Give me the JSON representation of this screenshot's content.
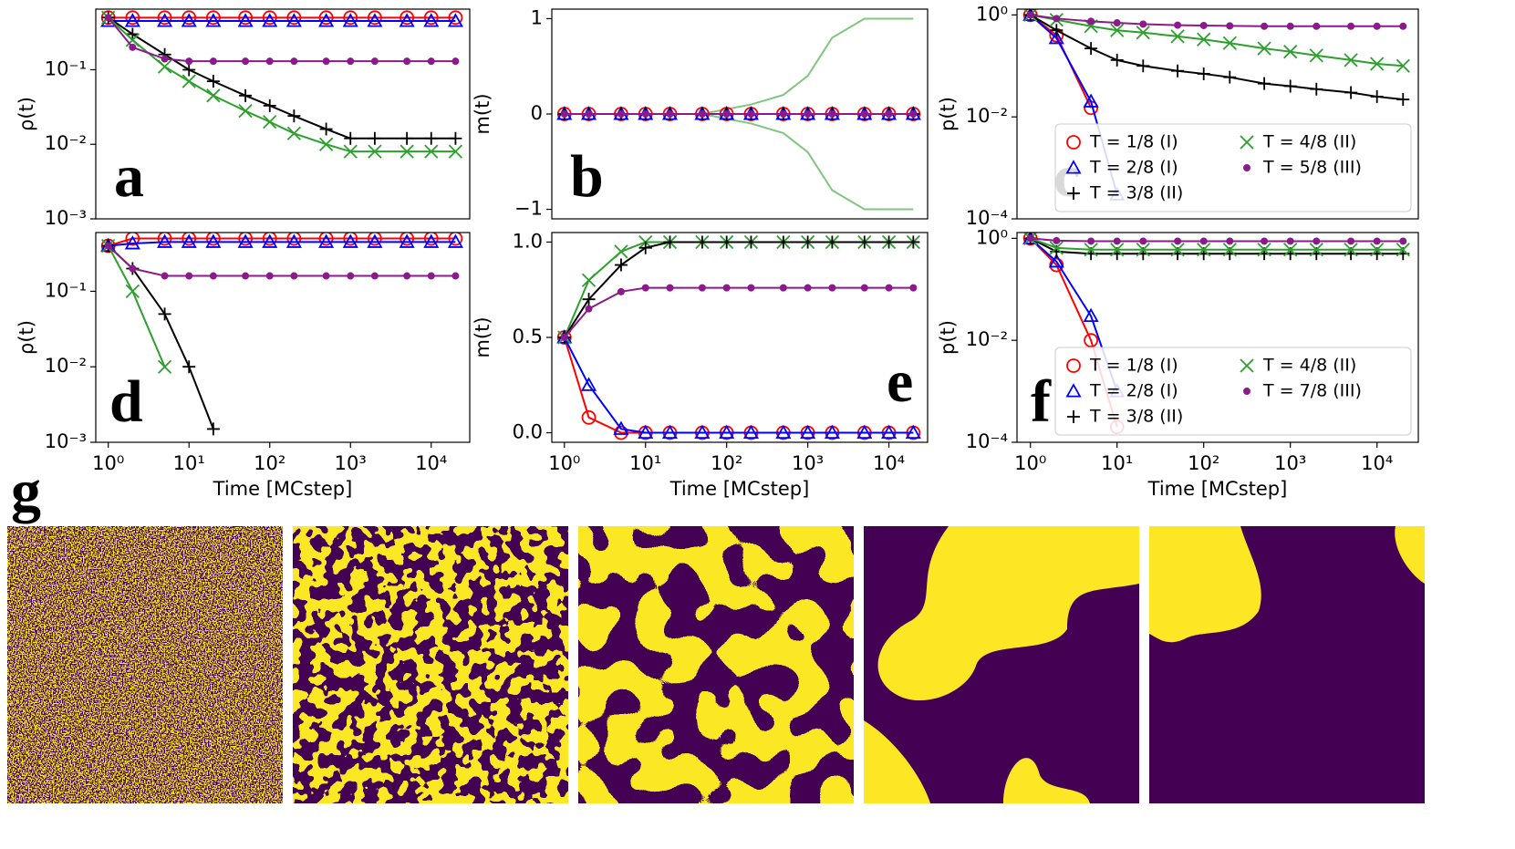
{
  "chart_data": [
    {
      "type": "line",
      "panel_label": "a",
      "ylabel": "ρ(t)",
      "xscale": "log",
      "yscale": "log",
      "xlim": [
        0.7,
        30000
      ],
      "ylim": [
        0.001,
        0.65
      ],
      "yticks": [
        {
          "value": 0.001,
          "label": "10⁻³"
        },
        {
          "value": 0.01,
          "label": "10⁻²"
        },
        {
          "value": 0.1,
          "label": "10⁻¹"
        }
      ],
      "x": [
        1,
        2,
        5,
        10,
        20,
        50,
        100,
        200,
        500,
        1000,
        2000,
        5000,
        10000,
        20000
      ],
      "series": [
        {
          "color": "#ff0000",
          "marker": "o",
          "values": [
            0.5,
            0.5,
            0.5,
            0.5,
            0.5,
            0.5,
            0.5,
            0.5,
            0.5,
            0.5,
            0.5,
            0.5,
            0.5,
            0.5
          ]
        },
        {
          "color": "#0000ff",
          "marker": "^",
          "values": [
            0.45,
            0.45,
            0.45,
            0.45,
            0.45,
            0.45,
            0.45,
            0.45,
            0.45,
            0.45,
            0.45,
            0.45,
            0.45,
            0.45
          ]
        },
        {
          "color": "#000000",
          "marker": "+",
          "values": [
            0.5,
            0.3,
            0.16,
            0.1,
            0.07,
            0.045,
            0.033,
            0.024,
            0.016,
            0.012,
            0.012,
            0.012,
            0.012,
            0.012
          ]
        },
        {
          "color": "#2ca02c",
          "marker": "x",
          "values": [
            0.5,
            0.25,
            0.11,
            0.07,
            0.045,
            0.028,
            0.02,
            0.014,
            0.01,
            0.008,
            0.008,
            0.008,
            0.008,
            0.008
          ]
        },
        {
          "color": "#8b1a8b",
          "marker": ".",
          "values": [
            0.5,
            0.2,
            0.14,
            0.13,
            0.13,
            0.13,
            0.13,
            0.13,
            0.13,
            0.13,
            0.13,
            0.13,
            0.13,
            0.13
          ]
        }
      ]
    },
    {
      "type": "line",
      "panel_label": "b",
      "ylabel": "m(t)",
      "xscale": "log",
      "yscale": "linear",
      "xlim": [
        0.7,
        30000
      ],
      "ylim": [
        -1.1,
        1.1
      ],
      "yticks": [
        {
          "value": -1,
          "label": "−1"
        },
        0,
        1
      ],
      "x": [
        1,
        2,
        5,
        10,
        20,
        50,
        100,
        200,
        500,
        1000,
        2000,
        5000,
        10000,
        20000
      ],
      "series": [
        {
          "color": "#2ca02c",
          "marker": "none",
          "values": [
            0,
            0,
            0,
            0,
            0,
            0,
            0.05,
            0.1,
            0.2,
            0.4,
            0.8,
            1,
            1,
            1
          ]
        },
        {
          "color": "#2ca02c",
          "marker": "none",
          "values": [
            0,
            0,
            0,
            0,
            0,
            0,
            -0.05,
            -0.1,
            -0.2,
            -0.4,
            -0.8,
            -1,
            -1,
            -1
          ]
        },
        {
          "color": "#ff0000",
          "marker": "o",
          "values": [
            0,
            0,
            0,
            0,
            0,
            0,
            0,
            0,
            0,
            0,
            0,
            0,
            0,
            0
          ]
        },
        {
          "color": "#0000ff",
          "marker": "^",
          "values": [
            0,
            0,
            0,
            0,
            0,
            0,
            0,
            0,
            0,
            0,
            0,
            0,
            0,
            0
          ]
        },
        {
          "color": "#000000",
          "marker": "+",
          "values": [
            0,
            0,
            0,
            0,
            0,
            0,
            0,
            0,
            0,
            0,
            0,
            0,
            0,
            0
          ]
        },
        {
          "color": "#8b1a8b",
          "marker": ".",
          "values": [
            0,
            0,
            0,
            0,
            0,
            0,
            0,
            0,
            0,
            0,
            0,
            0,
            0,
            0
          ]
        }
      ]
    },
    {
      "type": "line",
      "panel_label": "c",
      "ylabel": "p(t)",
      "xscale": "log",
      "yscale": "log",
      "xlim": [
        0.7,
        30000
      ],
      "ylim": [
        0.0001,
        1.3
      ],
      "legend": "lower right",
      "yticks": [
        {
          "value": 0.0001,
          "label": "10⁻⁴"
        },
        {
          "value": 0.01,
          "label": "10⁻²"
        },
        {
          "value": 1,
          "label": "10⁰"
        }
      ],
      "x": [
        1,
        2,
        5,
        10,
        20,
        50,
        100,
        200,
        500,
        1000,
        2000,
        5000,
        10000,
        20000
      ],
      "series": [
        {
          "name": "T = 1/8 (I)",
          "color": "#ff0000",
          "marker": "o",
          "values": [
            1,
            0.4,
            0.015,
            null,
            null,
            null,
            null,
            null,
            null,
            null,
            null,
            null,
            null,
            null
          ]
        },
        {
          "name": "T = 2/8 (I)",
          "color": "#0000ff",
          "marker": "^",
          "values": [
            1,
            0.35,
            0.02,
            0.0003,
            null,
            null,
            null,
            null,
            null,
            null,
            null,
            null,
            null,
            null
          ]
        },
        {
          "name": "T = 3/8 (II)",
          "color": "#000000",
          "marker": "+",
          "values": [
            1,
            0.5,
            0.22,
            0.13,
            0.1,
            0.08,
            0.07,
            0.06,
            0.045,
            0.04,
            0.035,
            0.03,
            0.025,
            0.022
          ]
        },
        {
          "name": "T = 4/8 (II)",
          "color": "#2ca02c",
          "marker": "x",
          "values": [
            1,
            0.8,
            0.6,
            0.5,
            0.45,
            0.38,
            0.33,
            0.28,
            0.22,
            0.19,
            0.16,
            0.13,
            0.11,
            0.1
          ]
        },
        {
          "name": "T = 5/8 (III)",
          "color": "#8b1a8b",
          "marker": ".",
          "values": [
            1,
            0.85,
            0.75,
            0.7,
            0.66,
            0.63,
            0.62,
            0.61,
            0.6,
            0.6,
            0.6,
            0.6,
            0.6,
            0.6
          ]
        }
      ]
    },
    {
      "type": "line",
      "panel_label": "d",
      "ylabel": "ρ(t)",
      "xlabel": "Time [MCstep]",
      "xscale": "log",
      "yscale": "log",
      "xlim": [
        0.7,
        30000
      ],
      "ylim": [
        0.001,
        0.6
      ],
      "xticks": [
        {
          "value": 1,
          "label": "10⁰"
        },
        {
          "value": 10,
          "label": "10¹"
        },
        {
          "value": 100,
          "label": "10²"
        },
        {
          "value": 1000,
          "label": "10³"
        },
        {
          "value": 10000,
          "label": "10⁴"
        }
      ],
      "yticks": [
        {
          "value": 0.001,
          "label": "10⁻³"
        },
        {
          "value": 0.01,
          "label": "10⁻²"
        },
        {
          "value": 0.1,
          "label": "10⁻¹"
        }
      ],
      "x": [
        1,
        2,
        5,
        10,
        20,
        50,
        100,
        200,
        500,
        1000,
        2000,
        5000,
        10000,
        20000
      ],
      "series": [
        {
          "color": "#ff0000",
          "marker": "o",
          "values": [
            0.4,
            0.5,
            0.5,
            0.5,
            0.5,
            0.5,
            0.5,
            0.5,
            0.5,
            0.5,
            0.5,
            0.5,
            0.5,
            0.5
          ]
        },
        {
          "color": "#0000ff",
          "marker": "^",
          "values": [
            0.4,
            0.43,
            0.45,
            0.45,
            0.45,
            0.45,
            0.45,
            0.45,
            0.45,
            0.45,
            0.45,
            0.45,
            0.45,
            0.45
          ]
        },
        {
          "color": "#000000",
          "marker": "+",
          "values": [
            0.4,
            0.2,
            0.05,
            0.01,
            0.0015,
            null,
            null,
            null,
            null,
            null,
            null,
            null,
            null,
            null
          ]
        },
        {
          "color": "#2ca02c",
          "marker": "x",
          "values": [
            0.4,
            0.1,
            0.01,
            null,
            null,
            null,
            null,
            null,
            null,
            null,
            null,
            null,
            null,
            null
          ]
        },
        {
          "color": "#8b1a8b",
          "marker": ".",
          "values": [
            0.4,
            0.2,
            0.16,
            0.16,
            0.16,
            0.16,
            0.16,
            0.16,
            0.16,
            0.16,
            0.16,
            0.16,
            0.16,
            0.16
          ]
        }
      ]
    },
    {
      "type": "line",
      "panel_label": "e",
      "ylabel": "m(t)",
      "xlabel": "Time [MCstep]",
      "xscale": "log",
      "yscale": "linear",
      "xlim": [
        0.7,
        30000
      ],
      "ylim": [
        -0.05,
        1.05
      ],
      "xticks": [
        {
          "value": 1,
          "label": "10⁰"
        },
        {
          "value": 10,
          "label": "10¹"
        },
        {
          "value": 100,
          "label": "10²"
        },
        {
          "value": 1000,
          "label": "10³"
        },
        {
          "value": 10000,
          "label": "10⁴"
        }
      ],
      "yticks": [
        {
          "value": 0,
          "label": "0.0"
        },
        {
          "value": 0.5,
          "label": "0.5"
        },
        {
          "value": 1,
          "label": "1.0"
        }
      ],
      "x": [
        1,
        2,
        5,
        10,
        20,
        50,
        100,
        200,
        500,
        1000,
        2000,
        5000,
        10000,
        20000
      ],
      "series": [
        {
          "color": "#ff0000",
          "marker": "o",
          "values": [
            0.5,
            0.08,
            0,
            0,
            0,
            0,
            0,
            0,
            0,
            0,
            0,
            0,
            0,
            0
          ]
        },
        {
          "color": "#0000ff",
          "marker": "^",
          "values": [
            0.5,
            0.25,
            0.02,
            0,
            0,
            0,
            0,
            0,
            0,
            0,
            0,
            0,
            0,
            0
          ]
        },
        {
          "color": "#2ca02c",
          "marker": "x",
          "values": [
            0.5,
            0.8,
            0.95,
            1,
            1,
            1,
            1,
            1,
            1,
            1,
            1,
            1,
            1,
            1
          ]
        },
        {
          "color": "#000000",
          "marker": "+",
          "values": [
            0.5,
            0.7,
            0.88,
            0.97,
            1,
            1,
            1,
            1,
            1,
            1,
            1,
            1,
            1,
            1
          ]
        },
        {
          "color": "#8b1a8b",
          "marker": ".",
          "values": [
            0.5,
            0.65,
            0.74,
            0.76,
            0.76,
            0.76,
            0.76,
            0.76,
            0.76,
            0.76,
            0.76,
            0.76,
            0.76,
            0.76
          ]
        }
      ]
    },
    {
      "type": "line",
      "panel_label": "f",
      "ylabel": "p(t)",
      "xlabel": "Time [MCstep]",
      "xscale": "log",
      "yscale": "log",
      "xlim": [
        0.7,
        30000
      ],
      "ylim": [
        0.0001,
        1.3
      ],
      "legend": "lower right",
      "xticks": [
        {
          "value": 1,
          "label": "10⁰"
        },
        {
          "value": 10,
          "label": "10¹"
        },
        {
          "value": 100,
          "label": "10²"
        },
        {
          "value": 1000,
          "label": "10³"
        },
        {
          "value": 10000,
          "label": "10⁴"
        }
      ],
      "yticks": [
        {
          "value": 0.0001,
          "label": "10⁻⁴"
        },
        {
          "value": 0.01,
          "label": "10⁻²"
        },
        {
          "value": 1,
          "label": "10⁰"
        }
      ],
      "x": [
        1,
        2,
        5,
        10,
        20,
        50,
        100,
        200,
        500,
        1000,
        2000,
        5000,
        10000,
        20000
      ],
      "series": [
        {
          "name": "T = 1/8 (I)",
          "color": "#ff0000",
          "marker": "o",
          "values": [
            1,
            0.3,
            0.01,
            0.0002,
            null,
            null,
            null,
            null,
            null,
            null,
            null,
            null,
            null,
            null
          ]
        },
        {
          "name": "T = 2/8 (I)",
          "color": "#0000ff",
          "marker": "^",
          "values": [
            1,
            0.35,
            0.03,
            0.001,
            null,
            null,
            null,
            null,
            null,
            null,
            null,
            null,
            null,
            null
          ]
        },
        {
          "name": "T = 3/8 (II)",
          "color": "#000000",
          "marker": "+",
          "values": [
            1,
            0.55,
            0.5,
            0.5,
            0.5,
            0.5,
            0.5,
            0.5,
            0.5,
            0.5,
            0.5,
            0.5,
            0.5,
            0.5
          ]
        },
        {
          "name": "T = 4/8 (II)",
          "color": "#2ca02c",
          "marker": "x",
          "values": [
            1,
            0.65,
            0.6,
            0.6,
            0.6,
            0.6,
            0.6,
            0.6,
            0.6,
            0.6,
            0.6,
            0.6,
            0.6,
            0.6
          ]
        },
        {
          "name": "T = 7/8 (III)",
          "color": "#8b1a8b",
          "marker": ".",
          "values": [
            1,
            0.9,
            0.88,
            0.88,
            0.88,
            0.88,
            0.88,
            0.88,
            0.88,
            0.88,
            0.88,
            0.88,
            0.88,
            0.88
          ]
        }
      ]
    }
  ],
  "snapshot_panel_label": "g"
}
